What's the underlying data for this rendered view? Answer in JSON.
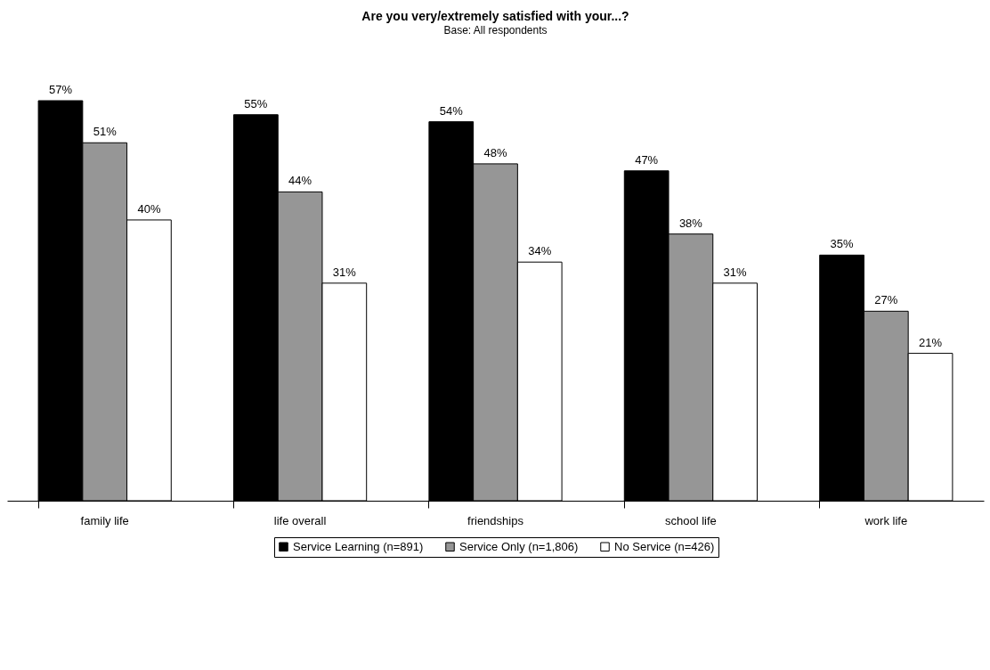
{
  "chart_data": {
    "type": "bar",
    "title": "Are you very/extremely satisfied with your...?",
    "subtitle": "Base: All respondents",
    "categories": [
      "family life",
      "life overall",
      "friendships",
      "school life",
      "work life"
    ],
    "series": [
      {
        "name": "Service Learning (n=891)",
        "color": "#000000",
        "values": [
          57,
          55,
          54,
          47,
          35
        ],
        "value_labels": [
          "57%",
          "55%",
          "54%",
          "47%",
          "35%"
        ]
      },
      {
        "name": "Service Only (n=1,806)",
        "color": "#969696",
        "values": [
          51,
          44,
          48,
          38,
          27
        ],
        "value_labels": [
          "51%",
          "44%",
          "48%",
          "38%",
          "27%"
        ]
      },
      {
        "name": "No Service (n=426)",
        "color": "#ffffff",
        "values": [
          40,
          31,
          34,
          31,
          21
        ],
        "value_labels": [
          "40%",
          "31%",
          "34%",
          "31%",
          "21%"
        ]
      }
    ],
    "tick_labels": "x",
    "grid": false,
    "legend": "bottom"
  }
}
